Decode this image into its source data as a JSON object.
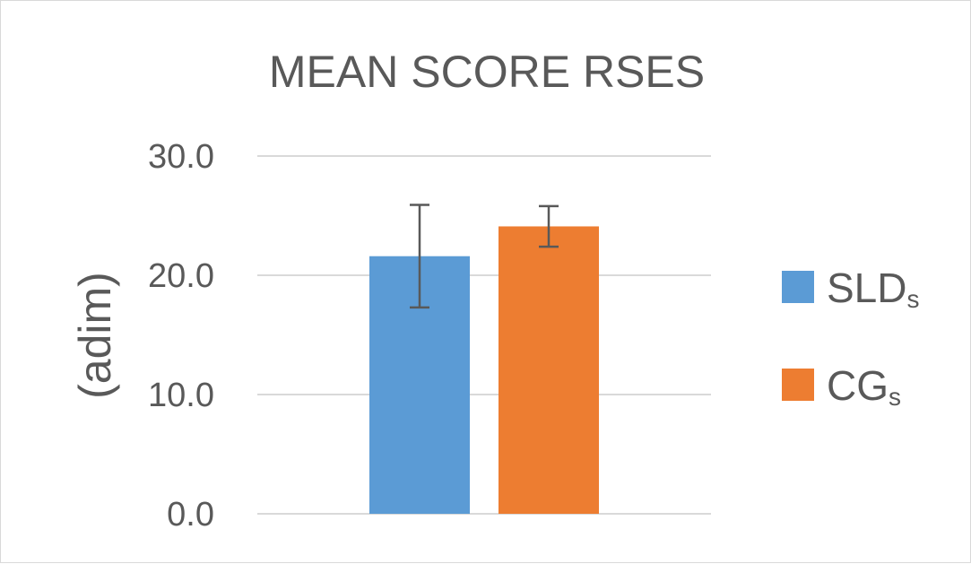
{
  "chart_data": {
    "type": "bar",
    "title": "MEAN SCORE RSES",
    "ylabel": "(adim)",
    "xlabel": "",
    "ylim": [
      0,
      30
    ],
    "y_ticks": [
      "0.0",
      "10.0",
      "20.0",
      "30.0"
    ],
    "grid": true,
    "legend_position": "right",
    "series": [
      {
        "name": "SLD",
        "name_sub": "s",
        "value": 21.6,
        "error": 4.3,
        "color": "#5b9bd5"
      },
      {
        "name": "CG",
        "name_sub": "s",
        "value": 24.1,
        "error": 1.7,
        "color": "#ed7d31"
      }
    ]
  }
}
